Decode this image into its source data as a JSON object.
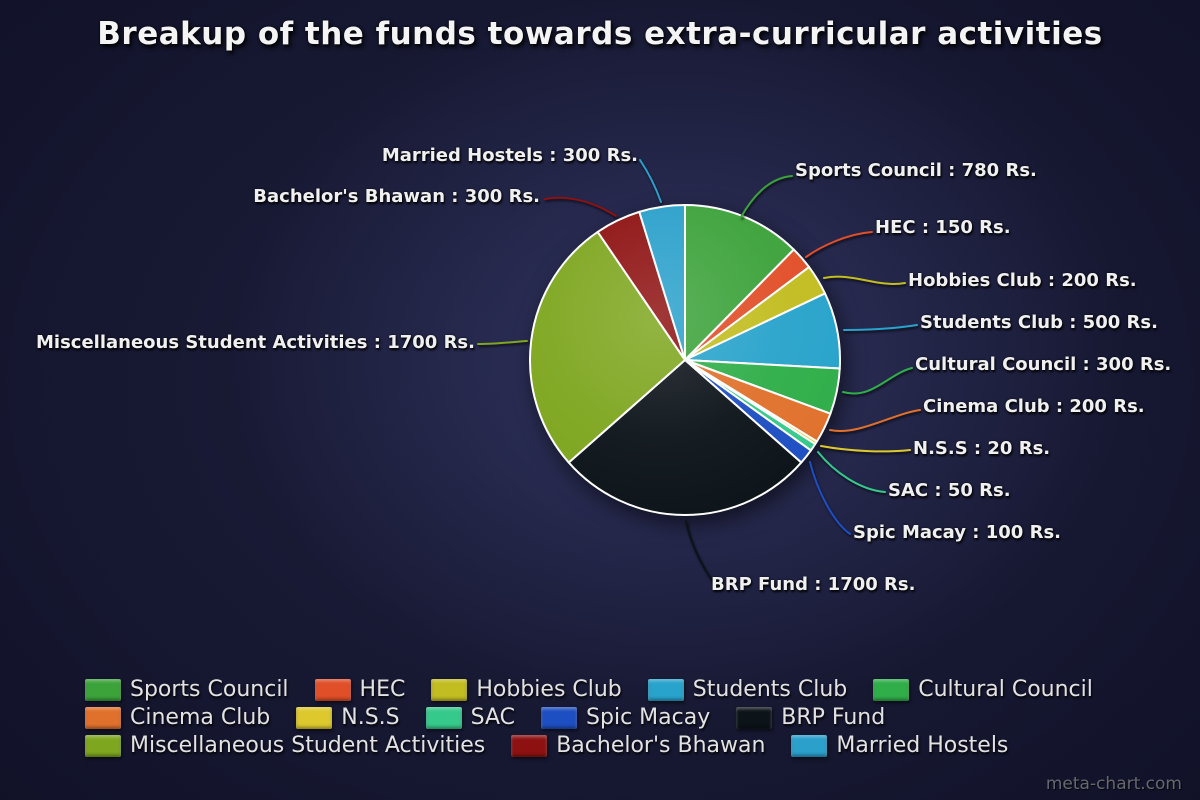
{
  "title": "Breakup of the funds towards extra-curricular activities",
  "watermark": "meta-chart.com",
  "chart_data": {
    "type": "pie",
    "title": "Breakup of the funds towards extra-curricular activities",
    "unit": "Rs.",
    "start_angle_deg": 0,
    "direction": "clockwise",
    "legend_position": "bottom-left",
    "categories": [
      "Sports Council",
      "HEC",
      "Hobbies Club",
      "Students Club",
      "Cultural Council",
      "Cinema Club",
      "N.S.S",
      "SAC",
      "Spic Macay",
      "BRP Fund",
      "Miscellaneous Student Activities",
      "Bachelor's Bhawan",
      "Married Hostels"
    ],
    "values": [
      780,
      150,
      200,
      500,
      300,
      200,
      20,
      50,
      100,
      1700,
      1700,
      300,
      300
    ],
    "colors": [
      "#3ca23a",
      "#e14f28",
      "#c2bd20",
      "#28a3cb",
      "#2fae49",
      "#e0712c",
      "#ddc92e",
      "#36c98c",
      "#1e4fc2",
      "#0c1319",
      "#7ea61f",
      "#8e1111",
      "#2aa0cb"
    ],
    "callouts": [
      "Sports Council : 780 Rs.",
      "HEC : 150 Rs.",
      "Hobbies Club : 200 Rs.",
      "Students Club : 500 Rs.",
      "Cultural Council : 300 Rs.",
      "Cinema Club : 200 Rs.",
      "N.S.S : 20 Rs.",
      "SAC : 50 Rs.",
      "Spic Macay : 100 Rs.",
      "BRP Fund : 1700 Rs.",
      "Miscellaneous Student Activities : 1700 Rs.",
      "Bachelor's Bhawan : 300 Rs.",
      "Married Hostels : 300 Rs."
    ]
  }
}
